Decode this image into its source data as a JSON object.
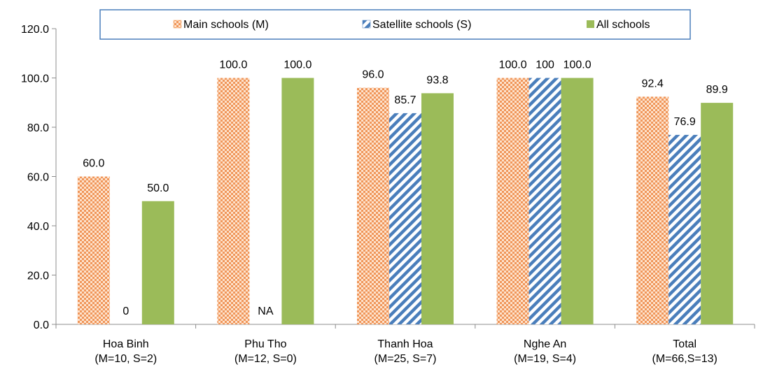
{
  "chart_data": {
    "type": "bar",
    "title": "",
    "xlabel": "",
    "ylabel": "",
    "ylim": [
      0,
      120
    ],
    "yticks": [
      0,
      20,
      40,
      60,
      80,
      100,
      120
    ],
    "ytick_labels": [
      "0.0",
      "20.0",
      "40.0",
      "60.0",
      "80.0",
      "100.0",
      "120.0"
    ],
    "grid": false,
    "legend_position": "top",
    "categories": [
      {
        "line1": "Hoa Binh",
        "line2": "(M=10, S=2)"
      },
      {
        "line1": "Phu Tho",
        "line2": "(M=12, S=0)"
      },
      {
        "line1": "Thanh Hoa",
        "line2": "(M=25, S=7)"
      },
      {
        "line1": "Nghe An",
        "line2": "(M=19, S=4)"
      },
      {
        "line1": "Total",
        "line2": "(M=66,S=13)"
      }
    ],
    "series": [
      {
        "name": "Main schools (M)",
        "pattern": "checker",
        "color": "#f4a460",
        "values": [
          60.0,
          100.0,
          96.0,
          100.0,
          92.4
        ],
        "labels": [
          "60.0",
          "100.0",
          "96.0",
          "100.0",
          "92.4"
        ]
      },
      {
        "name": "Satellite schools (S)",
        "pattern": "diagonal",
        "color": "#4a7ebb",
        "values": [
          0,
          0,
          85.7,
          100,
          76.9
        ],
        "labels": [
          "0",
          "NA",
          "85.7",
          "100",
          "76.9"
        ]
      },
      {
        "name": "All schools",
        "pattern": "solid",
        "color": "#9bbb59",
        "values": [
          50.0,
          100.0,
          93.8,
          100.0,
          89.9
        ],
        "labels": [
          "50.0",
          "100.0",
          "93.8",
          "100.0",
          "89.9"
        ]
      }
    ]
  }
}
